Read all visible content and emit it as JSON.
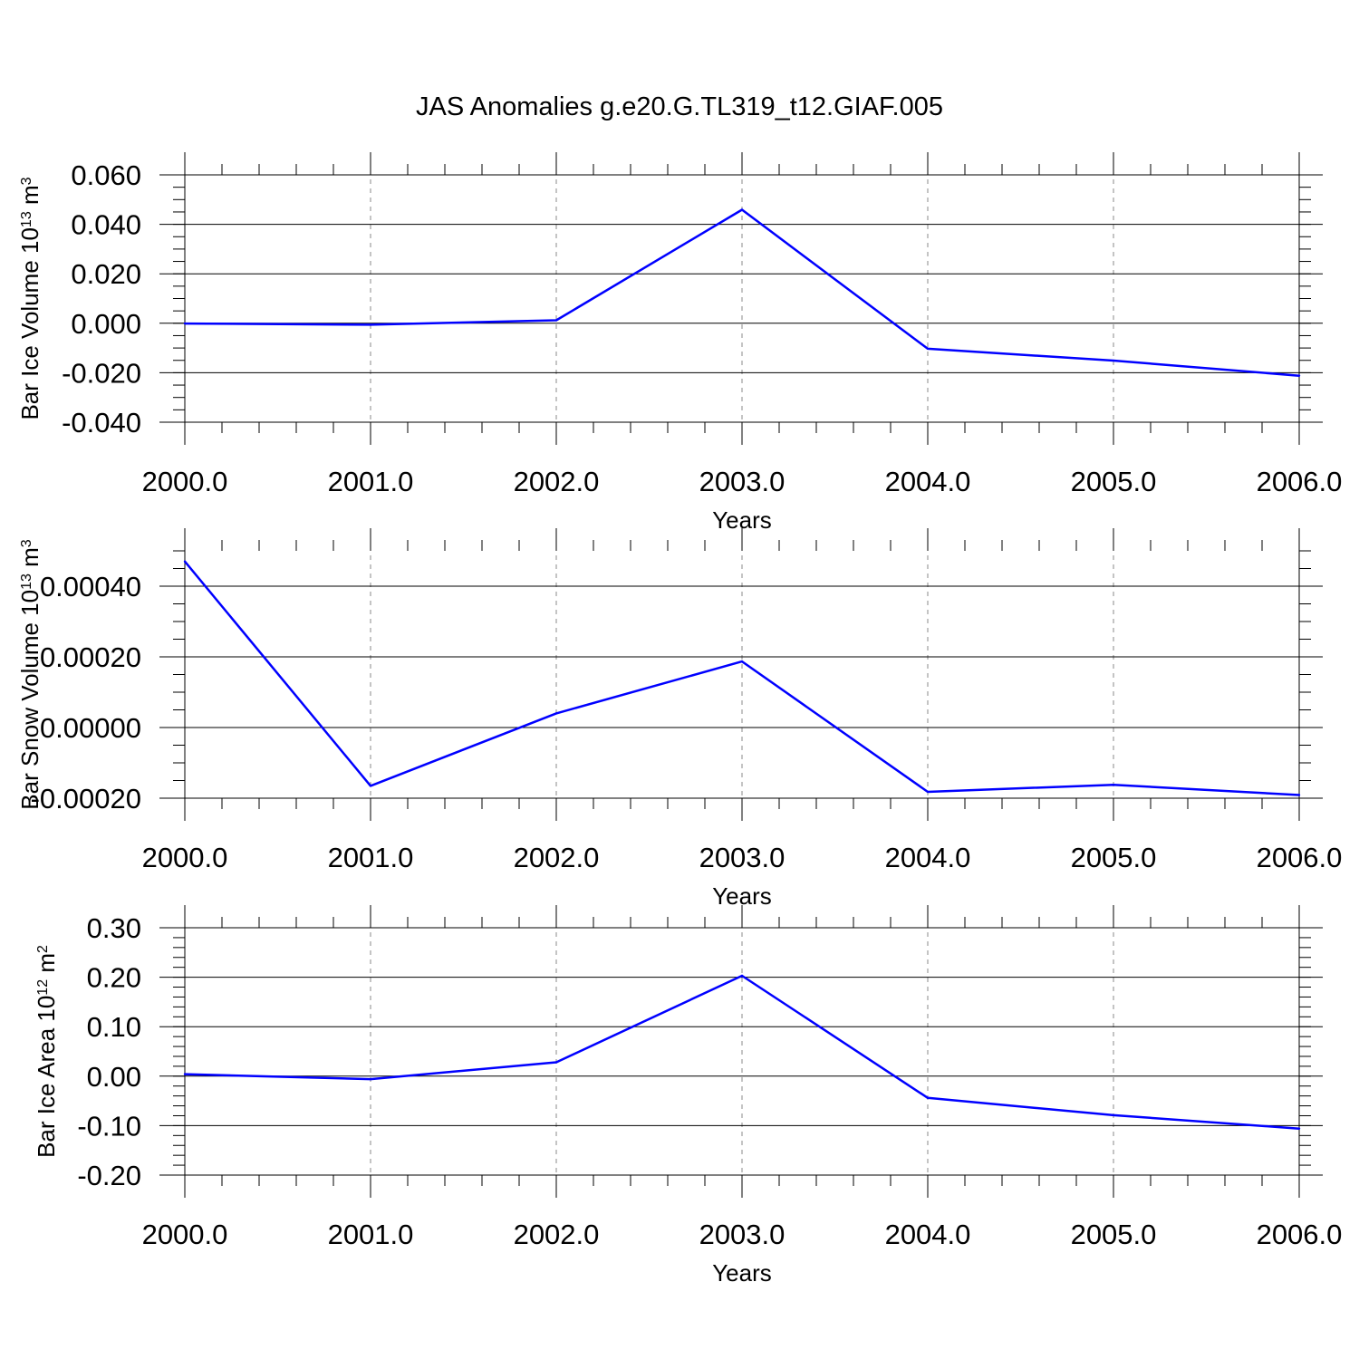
{
  "figure": {
    "title": "JAS Anomalies g.e20.G.TL319_t12.GIAF.005",
    "line_color": "#0000ff",
    "grid_color": "#888888"
  },
  "chart_data": [
    {
      "type": "line",
      "xlabel": "Years",
      "ylabel": "Bar Ice Volume",
      "ylabel_unit": {
        "base": "10",
        "exp": "13",
        "unit": "m",
        "unit_exp": "3"
      },
      "xlim": [
        2000,
        2006
      ],
      "ylim": [
        -0.04,
        0.06
      ],
      "x_ticks": [
        "2000.0",
        "2001.0",
        "2002.0",
        "2003.0",
        "2004.0",
        "2005.0",
        "2006.0"
      ],
      "y_ticks": [
        {
          "v": 0.06,
          "label": "0.060"
        },
        {
          "v": 0.04,
          "label": "0.040"
        },
        {
          "v": 0.02,
          "label": "0.020"
        },
        {
          "v": 0.0,
          "label": "0.000"
        },
        {
          "v": -0.02,
          "label": "-0.020"
        },
        {
          "v": -0.04,
          "label": "-0.040"
        }
      ],
      "y_minor_step": 0.005,
      "x": [
        2000,
        2001,
        2002,
        2003,
        2004,
        2005,
        2006
      ],
      "series": [
        {
          "values": [
            -0.0001,
            -0.0006,
            0.0012,
            0.0459,
            -0.0103,
            -0.0151,
            -0.0212
          ]
        }
      ]
    },
    {
      "type": "line",
      "xlabel": "Years",
      "ylabel": "Bar Snow Volume",
      "ylabel_unit": {
        "base": "10",
        "exp": "13",
        "unit": "m",
        "unit_exp": "3"
      },
      "xlim": [
        2000,
        2006
      ],
      "ylim": [
        -0.0002,
        0.0005
      ],
      "x_ticks": [
        "2000.0",
        "2001.0",
        "2002.0",
        "2003.0",
        "2004.0",
        "2005.0",
        "2006.0"
      ],
      "y_ticks": [
        {
          "v": 0.0004,
          "label": "0.00040"
        },
        {
          "v": 0.0002,
          "label": "0.00020"
        },
        {
          "v": 0.0,
          "label": "0.00000"
        },
        {
          "v": -0.0002,
          "label": "-0.00020"
        }
      ],
      "y_minor_step": 5e-05,
      "x": [
        2000,
        2001,
        2002,
        2003,
        2004,
        2005,
        2006
      ],
      "series": [
        {
          "values": [
            0.00047,
            -0.000165,
            4e-05,
            0.000187,
            -0.000182,
            -0.000162,
            -0.000191
          ]
        }
      ]
    },
    {
      "type": "line",
      "xlabel": "Years",
      "ylabel": "Bar Ice Area",
      "ylabel_unit": {
        "base": "10",
        "exp": "12",
        "unit": "m",
        "unit_exp": "2"
      },
      "xlim": [
        2000,
        2006
      ],
      "ylim": [
        -0.2,
        0.3
      ],
      "x_ticks": [
        "2000.0",
        "2001.0",
        "2002.0",
        "2003.0",
        "2004.0",
        "2005.0",
        "2006.0"
      ],
      "y_ticks": [
        {
          "v": 0.3,
          "label": "0.30"
        },
        {
          "v": 0.2,
          "label": "0.20"
        },
        {
          "v": 0.1,
          "label": "0.10"
        },
        {
          "v": 0.0,
          "label": "0.00"
        },
        {
          "v": -0.1,
          "label": "-0.10"
        },
        {
          "v": -0.2,
          "label": "-0.20"
        }
      ],
      "y_minor_step": 0.02,
      "x": [
        2000,
        2001,
        2002,
        2003,
        2004,
        2005,
        2006
      ],
      "series": [
        {
          "values": [
            0.004,
            -0.006,
            0.028,
            0.203,
            -0.044,
            -0.079,
            -0.106
          ]
        }
      ]
    }
  ]
}
